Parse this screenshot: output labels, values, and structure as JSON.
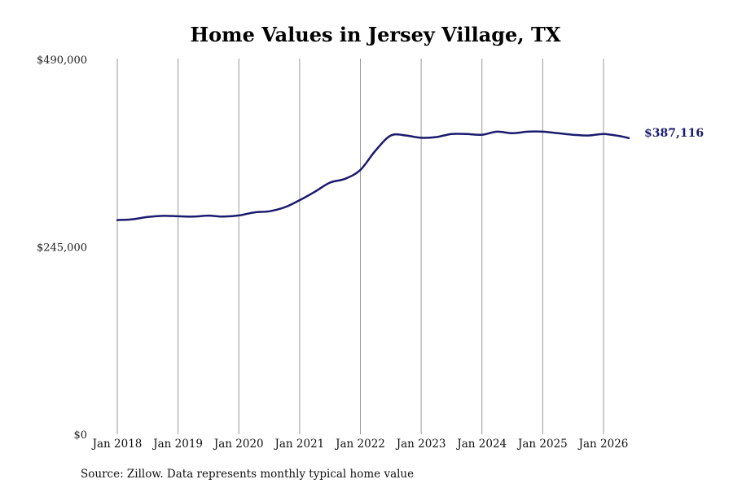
{
  "chart_data": {
    "type": "line",
    "title": "Home Values in Jersey Village, TX",
    "xlabel": "",
    "ylabel": "",
    "ylim": [
      0,
      490000
    ],
    "y_ticks": [
      {
        "value": 0,
        "label": "$0"
      },
      {
        "value": 245000,
        "label": "$245,000"
      },
      {
        "value": 490000,
        "label": "$490,000"
      }
    ],
    "x_ticks": [
      {
        "value": "2018-01",
        "label": "Jan 2018"
      },
      {
        "value": "2019-01",
        "label": "Jan 2019"
      },
      {
        "value": "2020-01",
        "label": "Jan 2020"
      },
      {
        "value": "2021-01",
        "label": "Jan 2021"
      },
      {
        "value": "2022-01",
        "label": "Jan 2022"
      },
      {
        "value": "2023-01",
        "label": "Jan 2023"
      },
      {
        "value": "2024-01",
        "label": "Jan 2024"
      },
      {
        "value": "2025-01",
        "label": "Jan 2025"
      },
      {
        "value": "2026-01",
        "label": "Jan 2026"
      }
    ],
    "grid": "vertical",
    "line_color": "#1a1a6e",
    "end_label": "$387,116",
    "source_note": "Source: Zillow. Data represents monthly typical home value",
    "series": [
      {
        "points": [
          {
            "x": "2018-01",
            "y": 280000
          },
          {
            "x": "2018-04",
            "y": 281000
          },
          {
            "x": "2018-07",
            "y": 284000
          },
          {
            "x": "2018-10",
            "y": 285500
          },
          {
            "x": "2019-01",
            "y": 285000
          },
          {
            "x": "2019-04",
            "y": 284500
          },
          {
            "x": "2019-07",
            "y": 285800
          },
          {
            "x": "2019-10",
            "y": 284500
          },
          {
            "x": "2020-01",
            "y": 286000
          },
          {
            "x": "2020-04",
            "y": 290000
          },
          {
            "x": "2020-07",
            "y": 291500
          },
          {
            "x": "2020-10",
            "y": 296500
          },
          {
            "x": "2021-01",
            "y": 306000
          },
          {
            "x": "2021-04",
            "y": 317000
          },
          {
            "x": "2021-07",
            "y": 329000
          },
          {
            "x": "2021-10",
            "y": 334000
          },
          {
            "x": "2022-01",
            "y": 345500
          },
          {
            "x": "2022-04",
            "y": 371000
          },
          {
            "x": "2022-07",
            "y": 390500
          },
          {
            "x": "2022-10",
            "y": 390500
          },
          {
            "x": "2023-01",
            "y": 387500
          },
          {
            "x": "2023-04",
            "y": 388500
          },
          {
            "x": "2023-07",
            "y": 392500
          },
          {
            "x": "2023-10",
            "y": 392500
          },
          {
            "x": "2024-01",
            "y": 391500
          },
          {
            "x": "2024-04",
            "y": 395500
          },
          {
            "x": "2024-07",
            "y": 393500
          },
          {
            "x": "2024-10",
            "y": 395500
          },
          {
            "x": "2025-01",
            "y": 395500
          },
          {
            "x": "2025-04",
            "y": 393500
          },
          {
            "x": "2025-07",
            "y": 391500
          },
          {
            "x": "2025-10",
            "y": 390500
          },
          {
            "x": "2026-01",
            "y": 392500
          },
          {
            "x": "2026-04",
            "y": 390000
          },
          {
            "x": "2026-06",
            "y": 387116
          }
        ]
      }
    ]
  }
}
